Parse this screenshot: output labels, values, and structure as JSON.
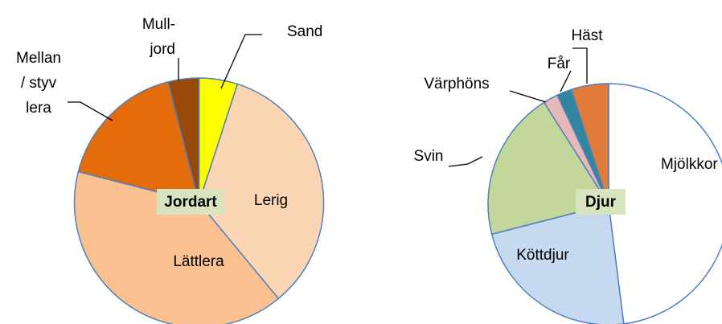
{
  "chart_data": [
    {
      "type": "pie",
      "title": "Jordart",
      "categories": [
        "Sand",
        "Lerig",
        "Lättlera",
        "Mellan\n/ styv\nlera",
        "Mull-\njord"
      ],
      "values": [
        5,
        34,
        40,
        17,
        4
      ],
      "colors": [
        "#ffff00",
        "#fcd5b5",
        "#fac090",
        "#e46c0a",
        "#984807"
      ]
    },
    {
      "type": "pie",
      "title": "Djur",
      "categories": [
        "Mjölkkor",
        "Köttdjur",
        "Svin",
        "Värphöns",
        "Får",
        "Häst"
      ],
      "values": [
        48,
        23,
        20,
        2,
        2,
        5
      ],
      "colors": [
        "#ffffff",
        "#c6d9f1",
        "#c3d69b",
        "#e6b9b8",
        "#31859c",
        "#e07b39"
      ]
    }
  ]
}
